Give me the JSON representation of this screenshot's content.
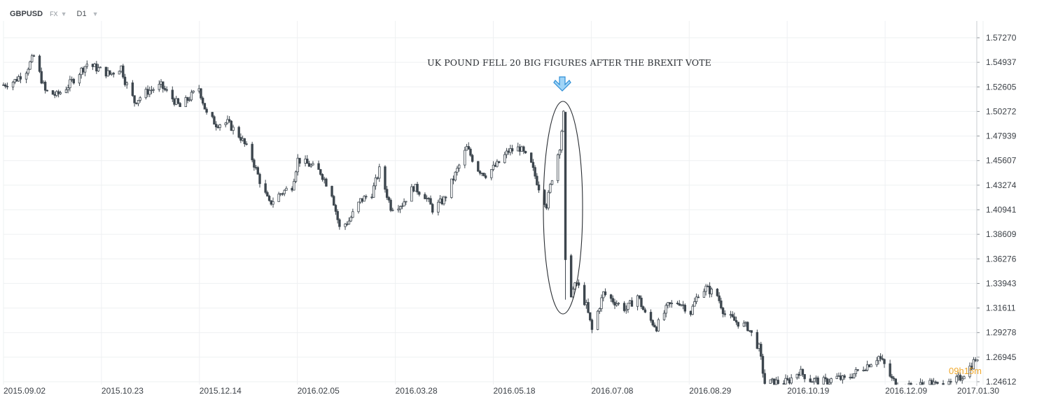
{
  "header": {
    "symbol": "GBPUSD",
    "market": "FX",
    "timeframe": "D1"
  },
  "timer": "09h15m",
  "colors": {
    "candle": "#3d464e",
    "arrow": "#4da8e8",
    "grid": "#eef0f2"
  },
  "chart_data": {
    "type": "candlestick",
    "title": "",
    "annotation": "UK POUND FELL 20 BIG FIGURES AFTER THE BREXIT VOTE",
    "y_ticks": [
      "1.57270",
      "1.54937",
      "1.52605",
      "1.50272",
      "1.47939",
      "1.45607",
      "1.43274",
      "1.40941",
      "1.38609",
      "1.36276",
      "1.33943",
      "1.31611",
      "1.29278",
      "1.26945",
      "1.24612"
    ],
    "ylim": [
      1.2461,
      1.5727
    ],
    "x_ticks": [
      "2015.09.02",
      "2015.10.23",
      "2015.12.14",
      "2016.02.05",
      "2016.03.28",
      "2016.05.18",
      "2016.07.08",
      "2016.08.29",
      "2016.10.19",
      "2016.12.09",
      "2017.01.30"
    ],
    "grid": true,
    "close_series": [
      {
        "date": "2015-09-02",
        "close": 1.528
      },
      {
        "date": "2015-09-08",
        "close": 1.532
      },
      {
        "date": "2015-09-14",
        "close": 1.542
      },
      {
        "date": "2015-09-18",
        "close": 1.555
      },
      {
        "date": "2015-09-24",
        "close": 1.522
      },
      {
        "date": "2015-09-30",
        "close": 1.518
      },
      {
        "date": "2015-10-06",
        "close": 1.527
      },
      {
        "date": "2015-10-12",
        "close": 1.54
      },
      {
        "date": "2015-10-16",
        "close": 1.548
      },
      {
        "date": "2015-10-22",
        "close": 1.543
      },
      {
        "date": "2015-10-28",
        "close": 1.538
      },
      {
        "date": "2015-11-03",
        "close": 1.545
      },
      {
        "date": "2015-11-05",
        "close": 1.532
      },
      {
        "date": "2015-11-10",
        "close": 1.512
      },
      {
        "date": "2015-11-17",
        "close": 1.522
      },
      {
        "date": "2015-11-24",
        "close": 1.527
      },
      {
        "date": "2015-11-30",
        "close": 1.515
      },
      {
        "date": "2015-12-04",
        "close": 1.507
      },
      {
        "date": "2015-12-08",
        "close": 1.514
      },
      {
        "date": "2015-12-14",
        "close": 1.525
      },
      {
        "date": "2015-12-18",
        "close": 1.5
      },
      {
        "date": "2015-12-23",
        "close": 1.491
      },
      {
        "date": "2015-12-29",
        "close": 1.492
      },
      {
        "date": "2016-01-05",
        "close": 1.478
      },
      {
        "date": "2016-01-11",
        "close": 1.458
      },
      {
        "date": "2016-01-15",
        "close": 1.437
      },
      {
        "date": "2016-01-20",
        "close": 1.415
      },
      {
        "date": "2016-01-26",
        "close": 1.425
      },
      {
        "date": "2016-02-01",
        "close": 1.432
      },
      {
        "date": "2016-02-04",
        "close": 1.457
      },
      {
        "date": "2016-02-10",
        "close": 1.452
      },
      {
        "date": "2016-02-16",
        "close": 1.445
      },
      {
        "date": "2016-02-22",
        "close": 1.425
      },
      {
        "date": "2016-02-26",
        "close": 1.392
      },
      {
        "date": "2016-03-02",
        "close": 1.399
      },
      {
        "date": "2016-03-08",
        "close": 1.418
      },
      {
        "date": "2016-03-14",
        "close": 1.425
      },
      {
        "date": "2016-03-18",
        "close": 1.447
      },
      {
        "date": "2016-03-24",
        "close": 1.412
      },
      {
        "date": "2016-03-30",
        "close": 1.415
      },
      {
        "date": "2016-04-05",
        "close": 1.431
      },
      {
        "date": "2016-04-11",
        "close": 1.423
      },
      {
        "date": "2016-04-15",
        "close": 1.41
      },
      {
        "date": "2016-04-21",
        "close": 1.419
      },
      {
        "date": "2016-04-27",
        "close": 1.443
      },
      {
        "date": "2016-05-03",
        "close": 1.468
      },
      {
        "date": "2016-05-09",
        "close": 1.448
      },
      {
        "date": "2016-05-13",
        "close": 1.443
      },
      {
        "date": "2016-05-19",
        "close": 1.452
      },
      {
        "date": "2016-05-25",
        "close": 1.465
      },
      {
        "date": "2016-05-31",
        "close": 1.468
      },
      {
        "date": "2016-06-06",
        "close": 1.452
      },
      {
        "date": "2016-06-10",
        "close": 1.431
      },
      {
        "date": "2016-06-14",
        "close": 1.414
      },
      {
        "date": "2016-06-17",
        "close": 1.44
      },
      {
        "date": "2016-06-21",
        "close": 1.47
      },
      {
        "date": "2016-06-23",
        "close": 1.5
      },
      {
        "date": "2016-06-24",
        "close": 1.362
      },
      {
        "date": "2016-06-27",
        "close": 1.33
      },
      {
        "date": "2016-06-30",
        "close": 1.34
      },
      {
        "date": "2016-07-05",
        "close": 1.318
      },
      {
        "date": "2016-07-08",
        "close": 1.295
      },
      {
        "date": "2016-07-14",
        "close": 1.33
      },
      {
        "date": "2016-07-20",
        "close": 1.322
      },
      {
        "date": "2016-07-26",
        "close": 1.315
      },
      {
        "date": "2016-08-01",
        "close": 1.328
      },
      {
        "date": "2016-08-05",
        "close": 1.31
      },
      {
        "date": "2016-08-11",
        "close": 1.298
      },
      {
        "date": "2016-08-17",
        "close": 1.318
      },
      {
        "date": "2016-08-23",
        "close": 1.322
      },
      {
        "date": "2016-08-29",
        "close": 1.312
      },
      {
        "date": "2016-09-02",
        "close": 1.33
      },
      {
        "date": "2016-09-06",
        "close": 1.335
      },
      {
        "date": "2016-09-12",
        "close": 1.328
      },
      {
        "date": "2016-09-16",
        "close": 1.31
      },
      {
        "date": "2016-09-22",
        "close": 1.303
      },
      {
        "date": "2016-09-28",
        "close": 1.298
      },
      {
        "date": "2016-10-04",
        "close": 1.278
      },
      {
        "date": "2016-10-07",
        "close": 1.245
      },
      {
        "date": "2016-10-19",
        "close": 1.246
      },
      {
        "date": "2016-10-25",
        "close": 1.256
      },
      {
        "date": "2016-10-31",
        "close": 1.248
      },
      {
        "date": "2016-11-08",
        "close": 1.246
      },
      {
        "date": "2016-11-14",
        "close": 1.25
      },
      {
        "date": "2016-11-18",
        "close": 1.248
      },
      {
        "date": "2016-11-24",
        "close": 1.255
      },
      {
        "date": "2016-11-30",
        "close": 1.262
      },
      {
        "date": "2016-12-06",
        "close": 1.27
      },
      {
        "date": "2016-12-09",
        "close": 1.262
      },
      {
        "date": "2016-12-13",
        "close": 1.248
      },
      {
        "date": "2016-12-19",
        "close": 1.24
      },
      {
        "date": "2017-01-02",
        "close": 1.245
      },
      {
        "date": "2017-01-10",
        "close": 1.24
      },
      {
        "date": "2017-01-18",
        "close": 1.25
      },
      {
        "date": "2017-01-24",
        "close": 1.262
      },
      {
        "date": "2017-01-26",
        "close": 1.268
      },
      {
        "date": "2017-01-30",
        "close": 1.25
      }
    ]
  }
}
